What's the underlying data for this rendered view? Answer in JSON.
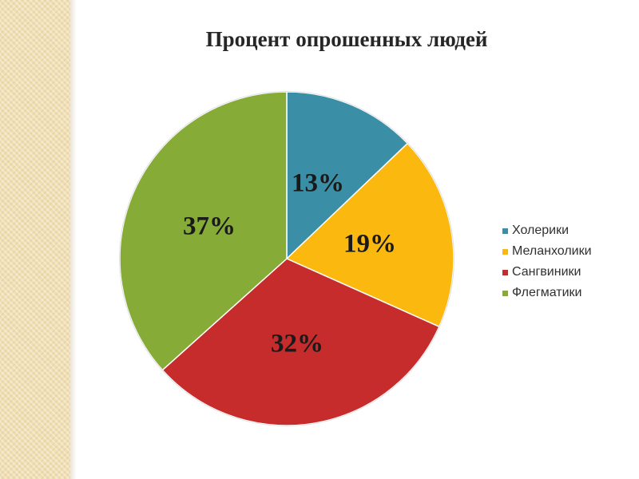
{
  "chart_data": {
    "type": "pie",
    "title": "Процент опрошенных людей",
    "categories": [
      "Холерики",
      "Меланхолики",
      "Сангвиники",
      "Флегматики"
    ],
    "values": [
      13,
      19,
      32,
      37
    ],
    "labels": [
      "13%",
      "19%",
      "32%",
      "37%"
    ],
    "colors": [
      "#3a8fa6",
      "#fbb80f",
      "#c62c2c",
      "#86ab37"
    ],
    "start": "12 o'clock",
    "direction": "clockwise",
    "legend_position": "right"
  }
}
